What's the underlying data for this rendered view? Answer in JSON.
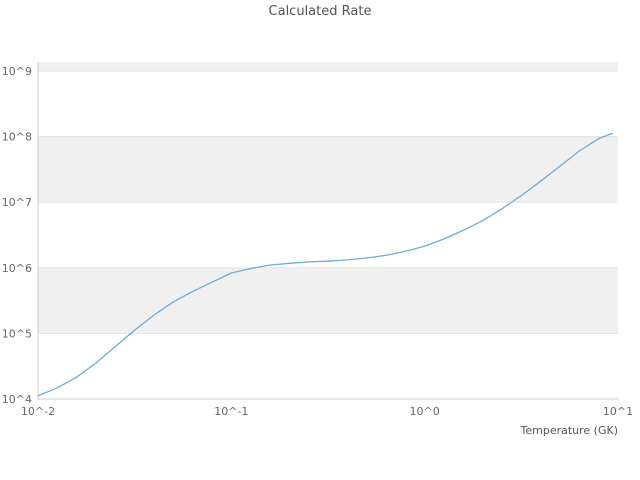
{
  "chart_data": {
    "type": "line",
    "title": "Calculated Rate",
    "xlabel": "Temperature (GK)",
    "ylabel": "",
    "x_scale": "log",
    "y_scale": "log",
    "xlim": [
      0.01,
      10
    ],
    "ylim": [
      10000.0,
      1000000000.0
    ],
    "grid": true,
    "legend": "none",
    "x_ticks": [
      {
        "value": 0.01,
        "label": "10^-2"
      },
      {
        "value": 0.1,
        "label": "10^-1"
      },
      {
        "value": 1,
        "label": "10^0"
      },
      {
        "value": 10,
        "label": "10^1"
      }
    ],
    "y_ticks": [
      {
        "value": 10000.0,
        "label": "10^4"
      },
      {
        "value": 100000.0,
        "label": "10^5"
      },
      {
        "value": 1000000.0,
        "label": "10^6"
      },
      {
        "value": 10000000.0,
        "label": "10^7"
      },
      {
        "value": 100000000.0,
        "label": "10^8"
      },
      {
        "value": 1000000000.0,
        "label": "10^9"
      }
    ],
    "line_color": "#6baed6",
    "band_color": "#f0f0f0",
    "grid_color": "#e3e3e3",
    "axis_color": "#cccccc",
    "text_color": "#666666",
    "title_color": "#555555",
    "series": [
      {
        "name": "Calculated Rate",
        "x": [
          0.01,
          0.0126,
          0.0158,
          0.02,
          0.0251,
          0.0316,
          0.0398,
          0.0501,
          0.0631,
          0.0794,
          0.1,
          0.126,
          0.158,
          0.2,
          0.251,
          0.316,
          0.398,
          0.501,
          0.631,
          0.794,
          1.0,
          1.26,
          1.58,
          2.0,
          2.51,
          3.16,
          3.98,
          5.01,
          6.31,
          7.94,
          9.33
        ],
        "y": [
          11200,
          14800,
          21400,
          35500,
          63100,
          112000,
          191000,
          302000,
          437000,
          603000,
          832000,
          977000,
          1100000,
          1170000,
          1230000,
          1260000,
          1320000,
          1410000,
          1550000,
          1780000,
          2140000,
          2750000,
          3720000,
          5250000,
          7940000,
          12600000,
          20900000,
          35500000,
          60300000,
          93300000,
          112000000
        ]
      }
    ]
  }
}
